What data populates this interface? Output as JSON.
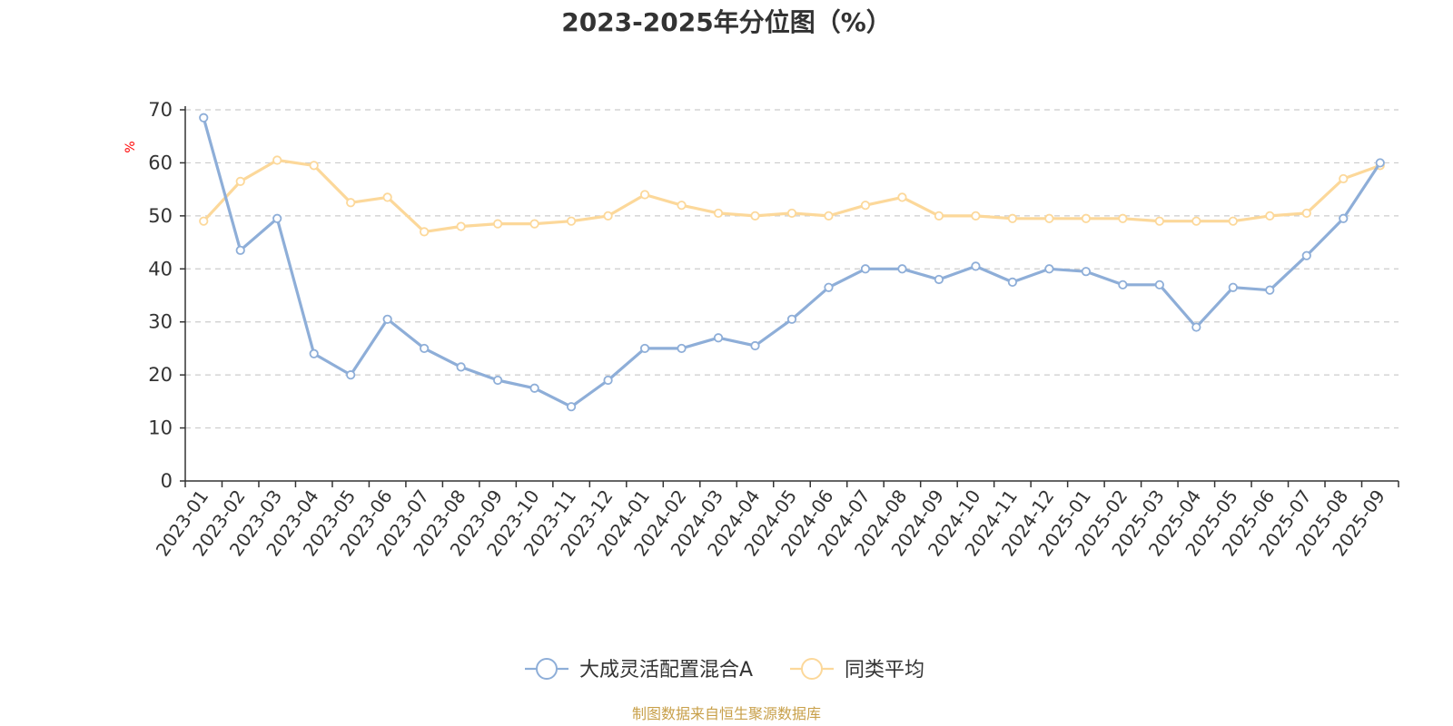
{
  "chart_data": {
    "type": "line",
    "title": "2023-2025年分位图（%）",
    "ylabel": "%",
    "ylim": [
      0,
      70
    ],
    "yticks": [
      0,
      10,
      20,
      30,
      40,
      50,
      60,
      70
    ],
    "grid": true,
    "legend_position": "bottom",
    "categories": [
      "2023-01",
      "2023-02",
      "2023-03",
      "2023-04",
      "2023-05",
      "2023-06",
      "2023-07",
      "2023-08",
      "2023-09",
      "2023-10",
      "2023-11",
      "2023-12",
      "2024-01",
      "2024-02",
      "2024-03",
      "2024-04",
      "2024-05",
      "2024-06",
      "2024-07",
      "2024-08",
      "2024-09",
      "2024-10",
      "2024-11",
      "2024-12",
      "2025-01",
      "2025-02",
      "2025-03",
      "2025-04",
      "2025-05",
      "2025-06",
      "2025-07",
      "2025-08",
      "2025-09"
    ],
    "series": [
      {
        "name": "大成灵活配置混合A",
        "color": "#8eaed8",
        "values": [
          68.5,
          43.5,
          49.5,
          24.0,
          20.0,
          30.5,
          25.0,
          21.5,
          19.0,
          17.5,
          14.0,
          19.0,
          25.0,
          25.0,
          27.0,
          25.5,
          30.5,
          36.5,
          40.0,
          40.0,
          38.0,
          40.5,
          37.5,
          40.0,
          39.5,
          37.0,
          37.0,
          29.0,
          36.5,
          36.0,
          42.5,
          49.5,
          60.0
        ]
      },
      {
        "name": "同类平均",
        "color": "#fcd89a",
        "values": [
          49.0,
          56.5,
          60.5,
          59.5,
          52.5,
          53.5,
          47.0,
          48.0,
          48.5,
          48.5,
          49.0,
          50.0,
          54.0,
          52.0,
          50.5,
          50.0,
          50.5,
          50.0,
          52.0,
          53.5,
          50.0,
          50.0,
          49.5,
          49.5,
          49.5,
          49.5,
          49.0,
          49.0,
          49.0,
          50.0,
          50.5,
          57.0,
          59.5
        ]
      }
    ],
    "source": "制图数据来自恒生聚源数据库"
  }
}
